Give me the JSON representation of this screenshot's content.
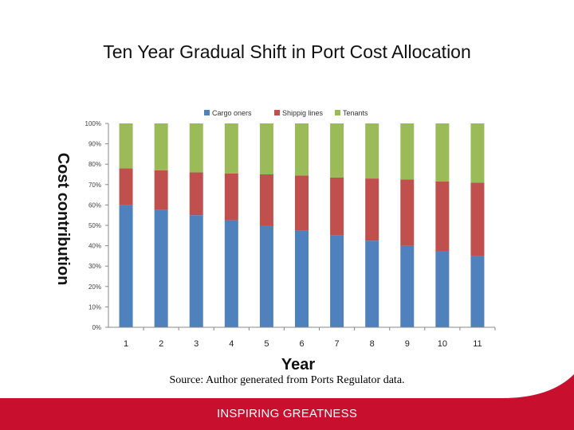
{
  "slide": {
    "title": "Ten Year Gradual Shift in Port Cost Allocation",
    "source": "Source: Author generated from Ports Regulator data.",
    "footer": "INSPIRING GREATNESS",
    "footer_color": "#c8102e"
  },
  "chart_data": {
    "type": "bar",
    "stacked": true,
    "percent": true,
    "xlabel": "Year",
    "ylabel": "Cost contribution",
    "ylim": [
      0,
      100
    ],
    "yticks": [
      "0%",
      "10%",
      "20%",
      "30%",
      "40%",
      "50%",
      "60%",
      "70%",
      "80%",
      "90%",
      "100%"
    ],
    "legend_position": "top",
    "grid": false,
    "categories": [
      "1",
      "2",
      "3",
      "4",
      "5",
      "6",
      "7",
      "8",
      "9",
      "10",
      "11"
    ],
    "series": [
      {
        "name": "Cargo oners",
        "color": "#4f81bd",
        "values": [
          60,
          57.5,
          55,
          52.5,
          50,
          47.5,
          45,
          42.5,
          40,
          37.5,
          35
        ]
      },
      {
        "name": "Shippig lines",
        "color": "#c0504d",
        "values": [
          18,
          19.5,
          21,
          23,
          25,
          27,
          28.5,
          30.5,
          32.5,
          34,
          36
        ]
      },
      {
        "name": "Tenants",
        "color": "#9bbb59",
        "values": [
          22,
          23,
          24,
          24.5,
          25,
          25.5,
          26.5,
          27,
          27.5,
          28.5,
          29
        ]
      }
    ]
  }
}
